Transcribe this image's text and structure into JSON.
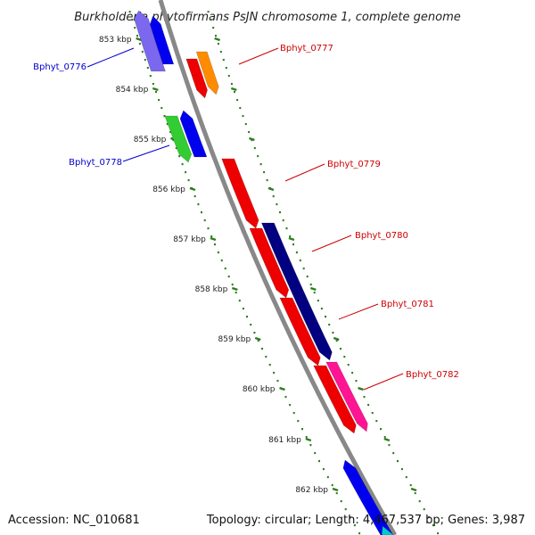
{
  "title": "Burkholderia phytofirmans PsJN chromosome 1, complete genome",
  "footer": {
    "accession": "Accession: NC_010681",
    "summary": "Topology: circular; Length: 4,467,537 bp; Genes: 3,987"
  },
  "scale": {
    "ticks": [
      "853 kbp",
      "854 kbp",
      "855 kbp",
      "856 kbp",
      "857 kbp",
      "858 kbp",
      "859 kbp",
      "860 kbp",
      "861 kbp",
      "862 kbp"
    ]
  },
  "colors": {
    "backbone": "#888888",
    "tick_dots": "#2e7d1e",
    "label_forward": "#0000cc",
    "label_reverse": "#cc0000",
    "red": "#ee0000",
    "orange": "#ff8c00",
    "navy": "#000080",
    "pink": "#ff1493",
    "blue": "#0000ee",
    "green": "#33cc33",
    "slate": "#7b68ee",
    "cyan": "#00cccc"
  },
  "genes": [
    {
      "label": "Bphyt_0776",
      "strand": "forward",
      "color": "slate"
    },
    {
      "label": "Bphyt_0777",
      "strand": "reverse",
      "color": "orange"
    },
    {
      "label": "Bphyt_0778",
      "strand": "forward",
      "color": "green"
    },
    {
      "label": "Bphyt_0779",
      "strand": "reverse",
      "color": "red"
    },
    {
      "label": "Bphyt_0780",
      "strand": "reverse",
      "color": "navy"
    },
    {
      "label": "Bphyt_0781",
      "strand": "reverse",
      "color": "red"
    },
    {
      "label": "Bphyt_0782",
      "strand": "reverse",
      "color": "pink"
    }
  ]
}
